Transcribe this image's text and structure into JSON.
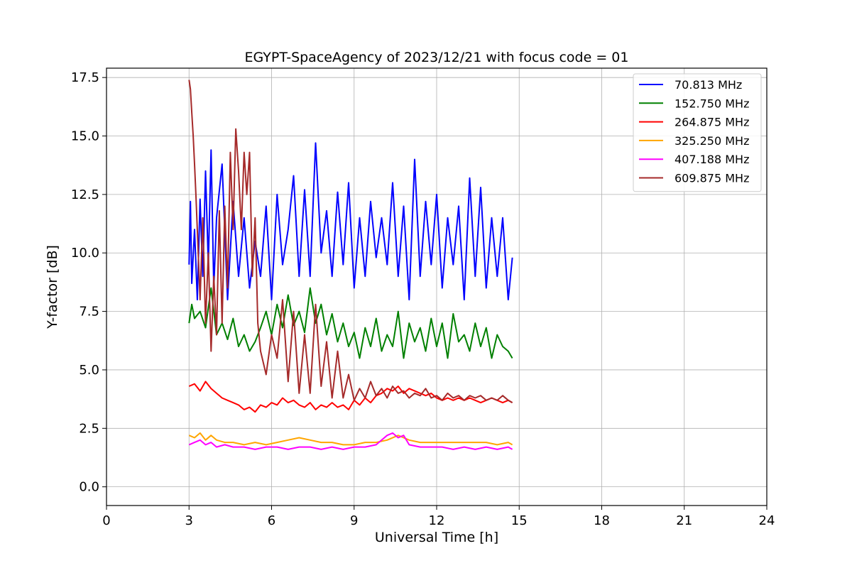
{
  "chart_data": {
    "type": "line",
    "title": "EGYPT-SpaceAgency of 2023/12/21 with focus code = 01",
    "xlabel": "Universal Time [h]",
    "ylabel": "Y-factor [dB]",
    "xlim": [
      0,
      24
    ],
    "ylim": [
      -0.8,
      17.9
    ],
    "xticks": [
      0,
      3,
      6,
      9,
      12,
      15,
      18,
      21,
      24
    ],
    "xtick_labels": [
      "0",
      "3",
      "6",
      "9",
      "12",
      "15",
      "18",
      "21",
      "24"
    ],
    "yticks": [
      0,
      2.5,
      5,
      7.5,
      10,
      12.5,
      15,
      17.5
    ],
    "ytick_labels": [
      "0.0",
      "2.5",
      "5.0",
      "7.5",
      "10.0",
      "12.5",
      "15.0",
      "17.5"
    ],
    "grid": true,
    "legend_position": "top-right",
    "series": [
      {
        "name": " 70.813 MHz",
        "color": "#0000ff",
        "x": [
          3.0,
          3.05,
          3.1,
          3.2,
          3.3,
          3.4,
          3.5,
          3.6,
          3.7,
          3.8,
          3.9,
          4.0,
          4.2,
          4.4,
          4.6,
          4.8,
          5.0,
          5.2,
          5.4,
          5.6,
          5.8,
          6.0,
          6.2,
          6.4,
          6.6,
          6.8,
          7.0,
          7.2,
          7.4,
          7.6,
          7.8,
          8.0,
          8.2,
          8.4,
          8.6,
          8.8,
          9.0,
          9.2,
          9.4,
          9.6,
          9.8,
          10.0,
          10.2,
          10.4,
          10.6,
          10.8,
          11.0,
          11.2,
          11.4,
          11.6,
          11.8,
          12.0,
          12.2,
          12.4,
          12.6,
          12.8,
          13.0,
          13.2,
          13.4,
          13.6,
          13.8,
          14.0,
          14.2,
          14.4,
          14.6,
          14.75
        ],
        "y": [
          9.5,
          12.2,
          8.7,
          11.0,
          8.0,
          12.3,
          9.0,
          13.5,
          9.5,
          14.4,
          8.5,
          11.5,
          13.8,
          8.0,
          12.2,
          9.0,
          11.5,
          8.5,
          10.5,
          9.0,
          12.0,
          8.0,
          12.5,
          9.5,
          11.0,
          13.3,
          9.0,
          12.7,
          9.0,
          14.7,
          10.0,
          11.8,
          9.0,
          12.6,
          9.5,
          13.0,
          8.5,
          11.5,
          9.0,
          12.2,
          9.8,
          11.5,
          9.5,
          13.0,
          9.0,
          12.0,
          8.0,
          14.0,
          9.0,
          12.2,
          9.5,
          12.5,
          8.5,
          11.5,
          9.5,
          12.0,
          8.0,
          13.2,
          9.0,
          12.8,
          8.5,
          11.5,
          9.0,
          11.5,
          8.0,
          9.8
        ]
      },
      {
        "name": "152.750 MHz",
        "color": "#008000",
        "x": [
          3.0,
          3.1,
          3.2,
          3.4,
          3.6,
          3.8,
          4.0,
          4.2,
          4.4,
          4.6,
          4.8,
          5.0,
          5.2,
          5.4,
          5.6,
          5.8,
          6.0,
          6.2,
          6.4,
          6.6,
          6.8,
          7.0,
          7.2,
          7.4,
          7.6,
          7.8,
          8.0,
          8.2,
          8.4,
          8.6,
          8.8,
          9.0,
          9.2,
          9.4,
          9.6,
          9.8,
          10.0,
          10.2,
          10.4,
          10.6,
          10.8,
          11.0,
          11.2,
          11.4,
          11.6,
          11.8,
          12.0,
          12.2,
          12.4,
          12.6,
          12.8,
          13.0,
          13.2,
          13.4,
          13.6,
          13.8,
          14.0,
          14.2,
          14.4,
          14.6,
          14.75
        ],
        "y": [
          7.0,
          7.8,
          7.2,
          7.5,
          6.8,
          8.5,
          6.5,
          7.0,
          6.3,
          7.2,
          6.0,
          6.5,
          5.8,
          6.2,
          6.8,
          7.5,
          6.5,
          7.8,
          6.8,
          8.2,
          6.9,
          7.5,
          6.6,
          8.5,
          7.0,
          7.8,
          6.5,
          7.4,
          6.2,
          7.0,
          6.0,
          6.6,
          5.5,
          6.8,
          6.0,
          7.2,
          5.8,
          6.5,
          6.0,
          7.5,
          5.5,
          7.0,
          6.2,
          6.8,
          5.8,
          7.2,
          6.0,
          7.0,
          5.5,
          7.4,
          6.2,
          6.5,
          5.8,
          7.0,
          6.0,
          6.8,
          5.5,
          6.5,
          6.0,
          5.8,
          5.5
        ]
      },
      {
        "name": "264.875 MHz",
        "color": "#ff0000",
        "x": [
          3.0,
          3.2,
          3.4,
          3.6,
          3.8,
          4.0,
          4.2,
          4.4,
          4.6,
          4.8,
          5.0,
          5.2,
          5.4,
          5.6,
          5.8,
          6.0,
          6.2,
          6.4,
          6.6,
          6.8,
          7.0,
          7.2,
          7.4,
          7.6,
          7.8,
          8.0,
          8.2,
          8.4,
          8.6,
          8.8,
          9.0,
          9.2,
          9.4,
          9.6,
          9.8,
          10.0,
          10.2,
          10.4,
          10.6,
          10.8,
          11.0,
          11.2,
          11.4,
          11.6,
          11.8,
          12.0,
          12.2,
          12.4,
          12.6,
          12.8,
          13.0,
          13.2,
          13.4,
          13.6,
          13.8,
          14.0,
          14.2,
          14.4,
          14.6,
          14.75
        ],
        "y": [
          4.3,
          4.4,
          4.1,
          4.5,
          4.2,
          4.0,
          3.8,
          3.7,
          3.6,
          3.5,
          3.3,
          3.4,
          3.2,
          3.5,
          3.4,
          3.6,
          3.5,
          3.8,
          3.6,
          3.7,
          3.5,
          3.4,
          3.6,
          3.3,
          3.5,
          3.4,
          3.6,
          3.4,
          3.5,
          3.3,
          3.7,
          3.5,
          3.8,
          3.6,
          3.9,
          4.0,
          4.2,
          4.1,
          4.3,
          4.0,
          4.2,
          4.1,
          4.0,
          3.9,
          4.0,
          3.8,
          3.7,
          3.8,
          3.7,
          3.8,
          3.7,
          3.8,
          3.7,
          3.6,
          3.7,
          3.8,
          3.7,
          3.6,
          3.7,
          3.6
        ]
      },
      {
        "name": "325.250 MHz",
        "color": "#ffa500",
        "x": [
          3.0,
          3.2,
          3.4,
          3.6,
          3.8,
          4.0,
          4.3,
          4.6,
          5.0,
          5.4,
          5.8,
          6.2,
          6.6,
          7.0,
          7.4,
          7.8,
          8.2,
          8.6,
          9.0,
          9.4,
          9.8,
          10.2,
          10.6,
          11.0,
          11.4,
          11.8,
          12.2,
          12.6,
          13.0,
          13.4,
          13.8,
          14.2,
          14.6,
          14.75
        ],
        "y": [
          2.2,
          2.1,
          2.3,
          2.0,
          2.2,
          2.0,
          1.9,
          1.9,
          1.8,
          1.9,
          1.8,
          1.9,
          2.0,
          2.1,
          2.0,
          1.9,
          1.9,
          1.8,
          1.8,
          1.9,
          1.9,
          2.0,
          2.2,
          2.0,
          1.9,
          1.9,
          1.9,
          1.9,
          1.9,
          1.9,
          1.9,
          1.8,
          1.9,
          1.8
        ]
      },
      {
        "name": "407.188 MHz",
        "color": "#ff00ff",
        "x": [
          3.0,
          3.2,
          3.4,
          3.6,
          3.8,
          4.0,
          4.3,
          4.6,
          5.0,
          5.4,
          5.8,
          6.2,
          6.6,
          7.0,
          7.4,
          7.8,
          8.2,
          8.6,
          9.0,
          9.4,
          9.8,
          10.0,
          10.2,
          10.4,
          10.6,
          10.8,
          11.0,
          11.4,
          11.8,
          12.2,
          12.6,
          13.0,
          13.4,
          13.8,
          14.2,
          14.6,
          14.75
        ],
        "y": [
          1.8,
          1.9,
          2.0,
          1.8,
          1.9,
          1.7,
          1.8,
          1.7,
          1.7,
          1.6,
          1.7,
          1.7,
          1.6,
          1.7,
          1.7,
          1.6,
          1.7,
          1.6,
          1.7,
          1.7,
          1.8,
          2.0,
          2.2,
          2.3,
          2.1,
          2.2,
          1.8,
          1.7,
          1.7,
          1.7,
          1.6,
          1.7,
          1.6,
          1.7,
          1.6,
          1.7,
          1.6
        ]
      },
      {
        "name": "609.875 MHz",
        "color": "#a52a2a",
        "x": [
          3.0,
          3.05,
          3.1,
          3.15,
          3.2,
          3.25,
          3.3,
          3.4,
          3.5,
          3.6,
          3.7,
          3.8,
          3.9,
          4.0,
          4.1,
          4.2,
          4.3,
          4.4,
          4.5,
          4.6,
          4.7,
          4.8,
          4.9,
          5.0,
          5.1,
          5.2,
          5.3,
          5.4,
          5.5,
          5.6,
          5.8,
          6.0,
          6.2,
          6.4,
          6.6,
          6.8,
          7.0,
          7.2,
          7.4,
          7.6,
          7.8,
          8.0,
          8.2,
          8.4,
          8.6,
          8.8,
          9.0,
          9.2,
          9.4,
          9.6,
          9.8,
          10.0,
          10.2,
          10.4,
          10.6,
          10.8,
          11.0,
          11.2,
          11.4,
          11.6,
          11.8,
          12.0,
          12.2,
          12.4,
          12.6,
          12.8,
          13.0,
          13.2,
          13.4,
          13.6,
          13.8,
          14.0,
          14.2,
          14.4,
          14.6,
          14.75
        ],
        "y": [
          17.4,
          17.0,
          16.0,
          15.0,
          13.8,
          12.5,
          11.0,
          8.0,
          11.5,
          7.0,
          10.0,
          5.8,
          9.0,
          6.5,
          11.8,
          7.0,
          12.0,
          8.5,
          14.3,
          11.0,
          15.3,
          13.5,
          11.0,
          14.3,
          12.5,
          14.3,
          9.0,
          11.5,
          7.0,
          5.8,
          4.8,
          6.5,
          5.5,
          8.0,
          4.5,
          7.5,
          4.0,
          6.5,
          4.0,
          7.8,
          4.3,
          6.2,
          3.8,
          5.8,
          3.8,
          4.8,
          3.7,
          4.2,
          3.8,
          4.5,
          3.9,
          4.2,
          3.8,
          4.3,
          4.0,
          4.1,
          3.8,
          4.0,
          3.9,
          4.2,
          3.8,
          3.9,
          3.7,
          4.0,
          3.8,
          3.9,
          3.7,
          3.9,
          3.8,
          3.9,
          3.7,
          3.8,
          3.7,
          3.9,
          3.7,
          3.6
        ]
      }
    ]
  }
}
